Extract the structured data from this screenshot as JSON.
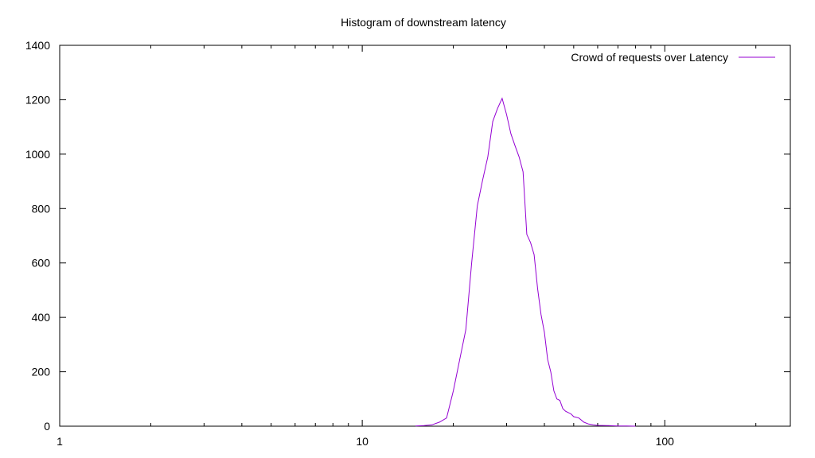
{
  "chart_data": {
    "type": "line",
    "title": "Histogram of downstream latency",
    "xlabel": "",
    "ylabel": "",
    "x_scale": "log",
    "xlim": [
      1,
      260
    ],
    "ylim": [
      0,
      1400
    ],
    "grid": false,
    "legend_position": "top-right",
    "x_ticks": [
      1,
      10,
      100
    ],
    "x_tick_labels": [
      "1",
      "10",
      "100"
    ],
    "y_ticks": [
      0,
      200,
      400,
      600,
      800,
      1000,
      1200,
      1400
    ],
    "y_tick_labels": [
      "0",
      "200",
      "400",
      "600",
      "800",
      "1000",
      "1200",
      "1400"
    ],
    "series": [
      {
        "name": "Crowd of requests over Latency",
        "color": "#9400d3",
        "x": [
          15,
          16,
          17,
          18,
          19,
          20,
          21,
          22,
          23,
          24,
          25,
          26,
          27,
          28,
          29,
          30,
          31,
          32,
          33,
          34,
          35,
          36,
          37,
          38,
          39,
          40,
          41,
          42,
          43,
          44,
          45,
          46,
          47,
          48,
          49,
          50,
          52,
          54,
          56,
          58,
          60,
          65,
          70,
          75,
          80
        ],
        "y": [
          1,
          2,
          5,
          15,
          30,
          130,
          245,
          355,
          600,
          810,
          905,
          990,
          1120,
          1168,
          1205,
          1145,
          1075,
          1030,
          990,
          935,
          705,
          675,
          630,
          505,
          410,
          345,
          245,
          200,
          130,
          100,
          95,
          65,
          55,
          50,
          45,
          35,
          30,
          15,
          8,
          5,
          3,
          2,
          1,
          1,
          0
        ]
      }
    ]
  }
}
